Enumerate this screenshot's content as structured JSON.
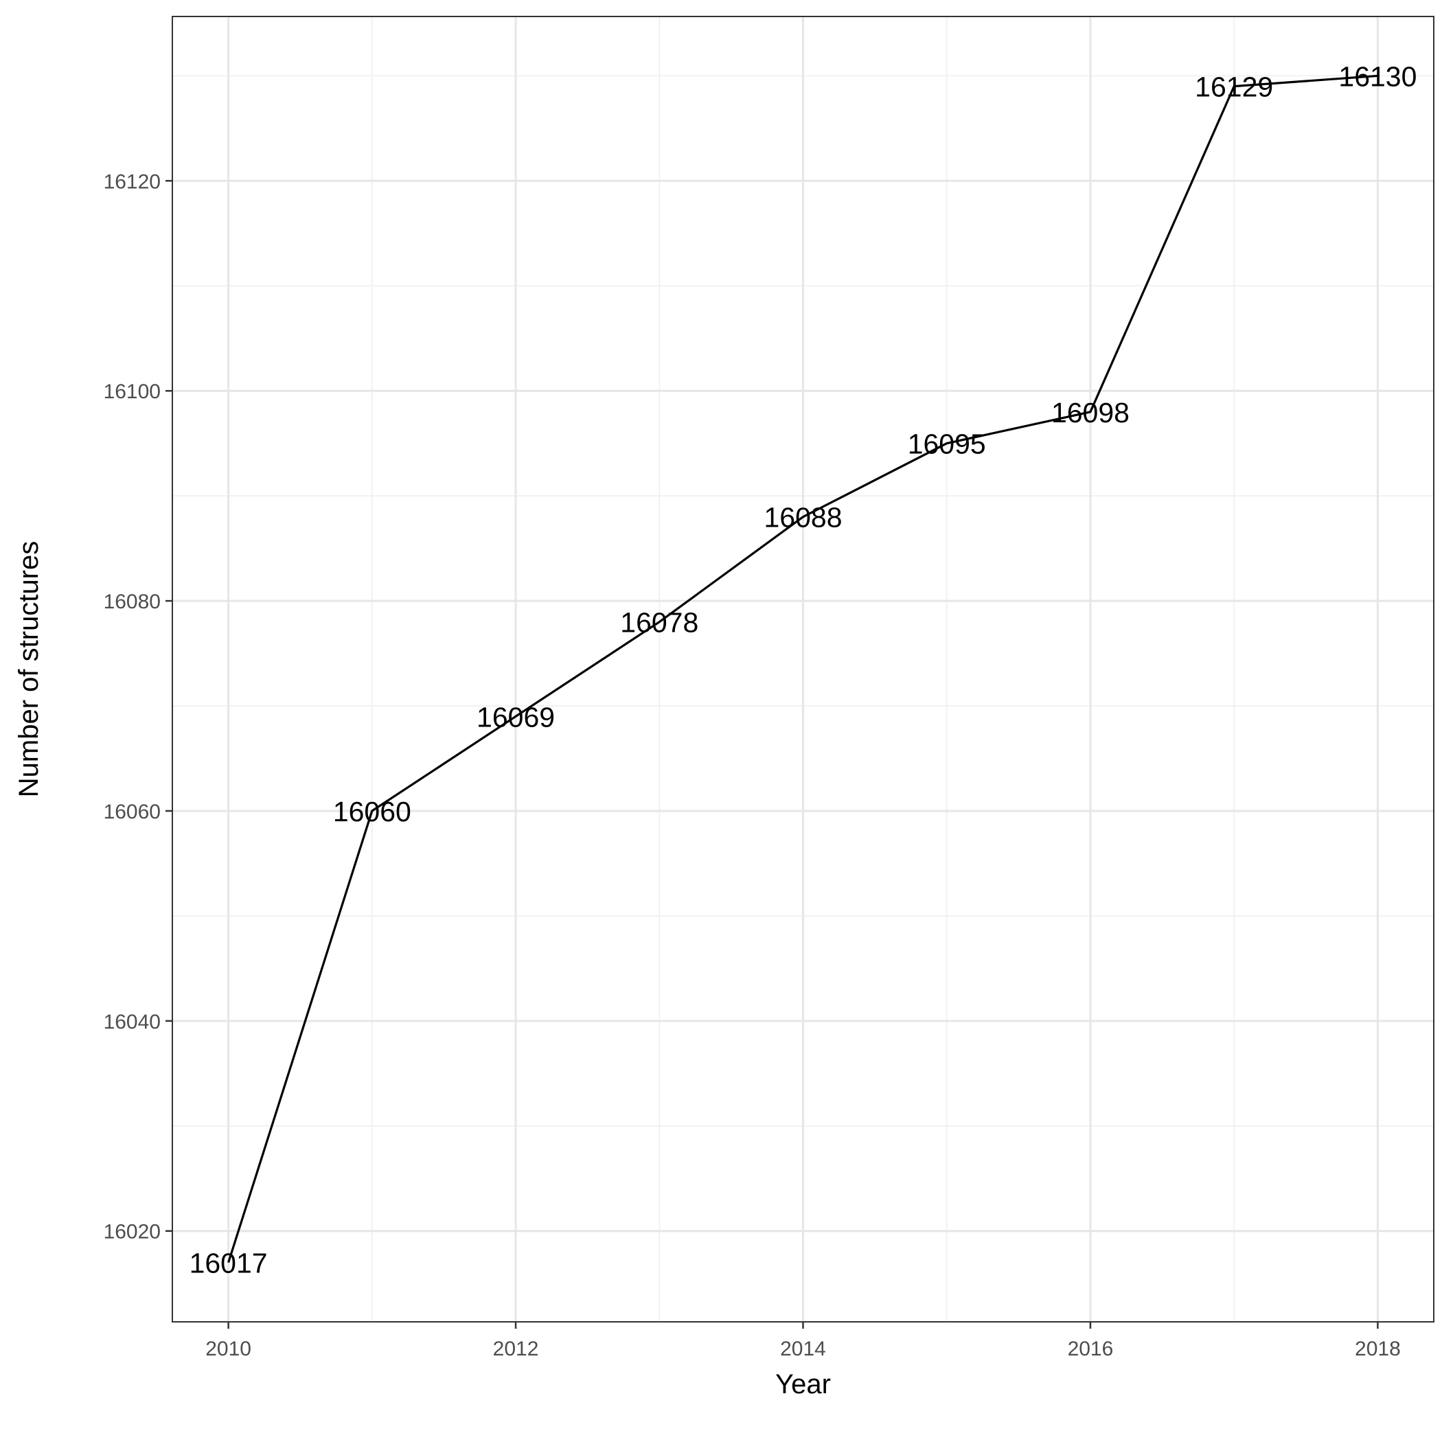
{
  "chart_data": {
    "type": "line",
    "title": "",
    "xlabel": "Year",
    "ylabel": "Number of structures",
    "x": [
      2010,
      2011,
      2012,
      2013,
      2014,
      2015,
      2016,
      2017,
      2018
    ],
    "series": [
      {
        "values": [
          16017,
          16060,
          16069,
          16078,
          16088,
          16095,
          16098,
          16129,
          16130
        ]
      }
    ],
    "data_labels": [
      "16017",
      "16060",
      "16069",
      "16078",
      "16088",
      "16095",
      "16098",
      "16129",
      "16130"
    ],
    "x_ticks": [
      2010,
      2012,
      2014,
      2016,
      2018
    ],
    "x_tick_labels": [
      "2010",
      "2012",
      "2014",
      "2016",
      "2018"
    ],
    "y_ticks": [
      16020,
      16040,
      16060,
      16080,
      16100,
      16120
    ],
    "y_tick_labels": [
      "16020",
      "16040",
      "16060",
      "16080",
      "16100",
      "16120"
    ],
    "xlim": [
      2009.61,
      2018.39
    ],
    "ylim": [
      16011.35,
      16135.65
    ],
    "grid": true,
    "line_color": "#000000"
  }
}
